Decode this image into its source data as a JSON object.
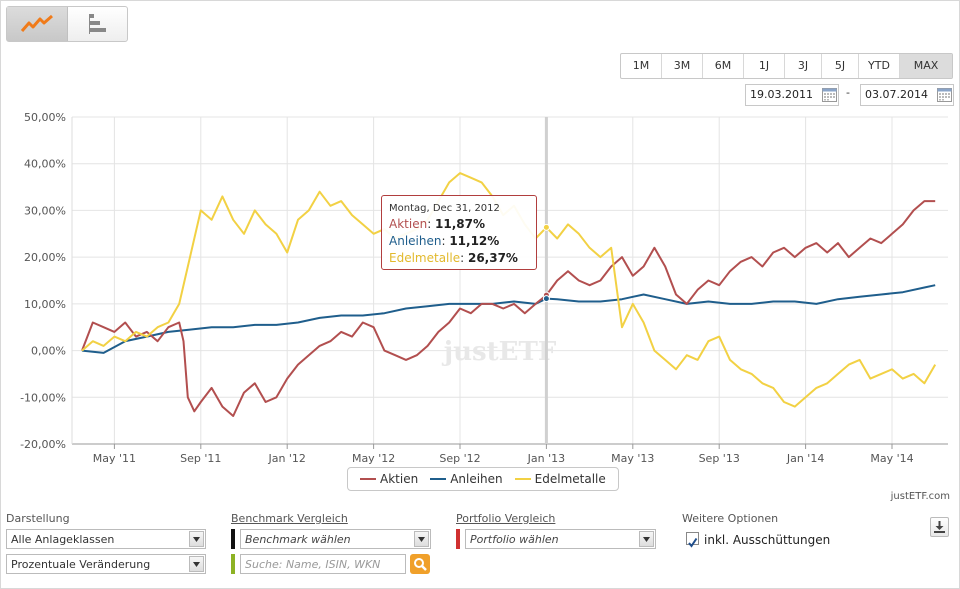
{
  "toolbar": {
    "view_options": [
      {
        "name": "line-chart-view",
        "icon": "line-chart-icon"
      },
      {
        "name": "bar-chart-view",
        "icon": "bar-chart-icon"
      }
    ]
  },
  "ranges": [
    "1M",
    "3M",
    "6M",
    "1J",
    "3J",
    "5J",
    "YTD",
    "MAX"
  ],
  "selected_range": "MAX",
  "date_from": "19.03.2011",
  "date_to": "03.07.2014",
  "date_sep": "-",
  "tooltip": {
    "date": "Montag, Dec 31, 2012",
    "rows": [
      {
        "label": "Aktien",
        "value": "11,87%"
      },
      {
        "label": "Anleihen",
        "value": "11,12%"
      },
      {
        "label": "Edelmetalle",
        "value": "26,37%"
      }
    ]
  },
  "watermark": "justETF",
  "credit": "justETF.com",
  "colors": {
    "aktien": "#b24f4f",
    "anleihen": "#1f5e8c",
    "edelmetalle": "#f2d144"
  },
  "chart_data": {
    "type": "line",
    "title": "",
    "xlabel": "",
    "ylabel": "",
    "ylim": [
      -20,
      50
    ],
    "y_ticks": [
      -20,
      -10,
      0,
      10,
      20,
      30,
      40,
      50
    ],
    "y_tick_labels": [
      "-20,00%",
      "-10,00%",
      "0,00%",
      "10,00%",
      "20,00%",
      "30,00%",
      "40,00%",
      "50,00%"
    ],
    "x_ticks": [
      {
        "t": 1.5,
        "label": "May '11"
      },
      {
        "t": 5.5,
        "label": "Sep '11"
      },
      {
        "t": 9.5,
        "label": "Jan '12"
      },
      {
        "t": 13.5,
        "label": "May '12"
      },
      {
        "t": 17.5,
        "label": "Sep '12"
      },
      {
        "t": 21.5,
        "label": "Jan '13"
      },
      {
        "t": 25.5,
        "label": "May '13"
      },
      {
        "t": 29.5,
        "label": "Sep '13"
      },
      {
        "t": 33.5,
        "label": "Jan '14"
      },
      {
        "t": 37.5,
        "label": "May '14"
      }
    ],
    "x_range": [
      0,
      40
    ],
    "crosshair_t": 21.5,
    "series": [
      {
        "name": "Aktien",
        "color": "#b24f4f",
        "points": [
          [
            0,
            0
          ],
          [
            0.5,
            6
          ],
          [
            1,
            5
          ],
          [
            1.5,
            4
          ],
          [
            2,
            6
          ],
          [
            2.5,
            3
          ],
          [
            3,
            4
          ],
          [
            3.5,
            2
          ],
          [
            4,
            5
          ],
          [
            4.5,
            6
          ],
          [
            4.7,
            2
          ],
          [
            4.9,
            -10
          ],
          [
            5.2,
            -13
          ],
          [
            5.5,
            -11
          ],
          [
            6,
            -8
          ],
          [
            6.5,
            -12
          ],
          [
            7,
            -14
          ],
          [
            7.5,
            -9
          ],
          [
            8,
            -7
          ],
          [
            8.5,
            -11
          ],
          [
            9,
            -10
          ],
          [
            9.5,
            -6
          ],
          [
            10,
            -3
          ],
          [
            10.5,
            -1
          ],
          [
            11,
            1
          ],
          [
            11.5,
            2
          ],
          [
            12,
            4
          ],
          [
            12.5,
            3
          ],
          [
            13,
            6
          ],
          [
            13.5,
            5
          ],
          [
            14,
            0
          ],
          [
            14.5,
            -1
          ],
          [
            15,
            -2
          ],
          [
            15.5,
            -1
          ],
          [
            16,
            1
          ],
          [
            16.5,
            4
          ],
          [
            17,
            6
          ],
          [
            17.5,
            9
          ],
          [
            18,
            8
          ],
          [
            18.5,
            10
          ],
          [
            19,
            10
          ],
          [
            19.5,
            9
          ],
          [
            20,
            10
          ],
          [
            20.5,
            8
          ],
          [
            21,
            10
          ],
          [
            21.5,
            11.87
          ],
          [
            22,
            15
          ],
          [
            22.5,
            17
          ],
          [
            23,
            15
          ],
          [
            23.5,
            14
          ],
          [
            24,
            15
          ],
          [
            24.5,
            18
          ],
          [
            25,
            20
          ],
          [
            25.5,
            16
          ],
          [
            26,
            18
          ],
          [
            26.5,
            22
          ],
          [
            27,
            18
          ],
          [
            27.5,
            12
          ],
          [
            28,
            10
          ],
          [
            28.5,
            13
          ],
          [
            29,
            15
          ],
          [
            29.5,
            14
          ],
          [
            30,
            17
          ],
          [
            30.5,
            19
          ],
          [
            31,
            20
          ],
          [
            31.5,
            18
          ],
          [
            32,
            21
          ],
          [
            32.5,
            22
          ],
          [
            33,
            20
          ],
          [
            33.5,
            22
          ],
          [
            34,
            23
          ],
          [
            34.5,
            21
          ],
          [
            35,
            23
          ],
          [
            35.5,
            20
          ],
          [
            36,
            22
          ],
          [
            36.5,
            24
          ],
          [
            37,
            23
          ],
          [
            37.5,
            25
          ],
          [
            38,
            27
          ],
          [
            38.5,
            30
          ],
          [
            39,
            32
          ],
          [
            39.5,
            32
          ]
        ]
      },
      {
        "name": "Anleihen",
        "color": "#1f5e8c",
        "points": [
          [
            0,
            0
          ],
          [
            1,
            -0.5
          ],
          [
            2,
            2
          ],
          [
            3,
            3
          ],
          [
            4,
            4
          ],
          [
            5,
            4.5
          ],
          [
            6,
            5
          ],
          [
            7,
            5
          ],
          [
            8,
            5.5
          ],
          [
            9,
            5.5
          ],
          [
            10,
            6
          ],
          [
            11,
            7
          ],
          [
            12,
            7.5
          ],
          [
            13,
            7.5
          ],
          [
            14,
            8
          ],
          [
            15,
            9
          ],
          [
            16,
            9.5
          ],
          [
            17,
            10
          ],
          [
            18,
            10
          ],
          [
            19,
            10
          ],
          [
            20,
            10.5
          ],
          [
            21,
            10
          ],
          [
            21.5,
            11.12
          ],
          [
            22,
            11
          ],
          [
            23,
            10.5
          ],
          [
            24,
            10.5
          ],
          [
            25,
            11
          ],
          [
            26,
            12
          ],
          [
            27,
            11
          ],
          [
            28,
            10
          ],
          [
            29,
            10.5
          ],
          [
            30,
            10
          ],
          [
            31,
            10
          ],
          [
            32,
            10.5
          ],
          [
            33,
            10.5
          ],
          [
            34,
            10
          ],
          [
            35,
            11
          ],
          [
            36,
            11.5
          ],
          [
            37,
            12
          ],
          [
            38,
            12.5
          ],
          [
            39,
            13.5
          ],
          [
            39.5,
            14
          ]
        ]
      },
      {
        "name": "Edelmetalle",
        "color": "#f2d144",
        "points": [
          [
            0,
            0
          ],
          [
            0.5,
            2
          ],
          [
            1,
            1
          ],
          [
            1.5,
            3
          ],
          [
            2,
            2
          ],
          [
            2.5,
            4
          ],
          [
            3,
            3
          ],
          [
            3.5,
            5
          ],
          [
            4,
            6
          ],
          [
            4.5,
            10
          ],
          [
            5,
            20
          ],
          [
            5.5,
            30
          ],
          [
            6,
            28
          ],
          [
            6.5,
            33
          ],
          [
            7,
            28
          ],
          [
            7.5,
            25
          ],
          [
            8,
            30
          ],
          [
            8.5,
            27
          ],
          [
            9,
            25
          ],
          [
            9.5,
            21
          ],
          [
            10,
            28
          ],
          [
            10.5,
            30
          ],
          [
            11,
            34
          ],
          [
            11.5,
            31
          ],
          [
            12,
            32
          ],
          [
            12.5,
            29
          ],
          [
            13,
            27
          ],
          [
            13.5,
            25
          ],
          [
            14,
            26
          ],
          [
            14.5,
            24
          ],
          [
            15,
            25
          ],
          [
            15.5,
            26
          ],
          [
            16,
            28
          ],
          [
            16.5,
            32
          ],
          [
            17,
            36
          ],
          [
            17.5,
            38
          ],
          [
            18,
            37
          ],
          [
            18.5,
            36
          ],
          [
            19,
            33
          ],
          [
            19.5,
            29
          ],
          [
            20,
            31
          ],
          [
            20.5,
            27
          ],
          [
            21,
            24
          ],
          [
            21.5,
            26.37
          ],
          [
            22,
            24
          ],
          [
            22.5,
            27
          ],
          [
            23,
            25
          ],
          [
            23.5,
            22
          ],
          [
            24,
            20
          ],
          [
            24.5,
            22
          ],
          [
            25,
            5
          ],
          [
            25.5,
            10
          ],
          [
            26,
            6
          ],
          [
            26.5,
            0
          ],
          [
            27,
            -2
          ],
          [
            27.5,
            -4
          ],
          [
            28,
            -1
          ],
          [
            28.5,
            -2
          ],
          [
            29,
            2
          ],
          [
            29.5,
            3
          ],
          [
            30,
            -2
          ],
          [
            30.5,
            -4
          ],
          [
            31,
            -5
          ],
          [
            31.5,
            -7
          ],
          [
            32,
            -8
          ],
          [
            32.5,
            -11
          ],
          [
            33,
            -12
          ],
          [
            33.5,
            -10
          ],
          [
            34,
            -8
          ],
          [
            34.5,
            -7
          ],
          [
            35,
            -5
          ],
          [
            35.5,
            -3
          ],
          [
            36,
            -2
          ],
          [
            36.5,
            -6
          ],
          [
            37,
            -5
          ],
          [
            37.5,
            -4
          ],
          [
            38,
            -6
          ],
          [
            38.5,
            -5
          ],
          [
            39,
            -7
          ],
          [
            39.5,
            -3
          ]
        ]
      }
    ]
  },
  "controls": {
    "darstellung_label": "Darstellung",
    "darstellung_value1": "Alle Anlageklassen",
    "darstellung_value2": "Prozentuale Veränderung",
    "benchmark_label": "Benchmark Vergleich",
    "benchmark_value": "Benchmark wählen",
    "search_placeholder": "Suche: Name, ISIN, WKN",
    "portfolio_label": "Portfolio Vergleich",
    "portfolio_value": "Portfolio wählen",
    "options_label": "Weitere Optionen",
    "checkbox_label": "inkl. Ausschüttungen",
    "checkbox_checked": true
  }
}
